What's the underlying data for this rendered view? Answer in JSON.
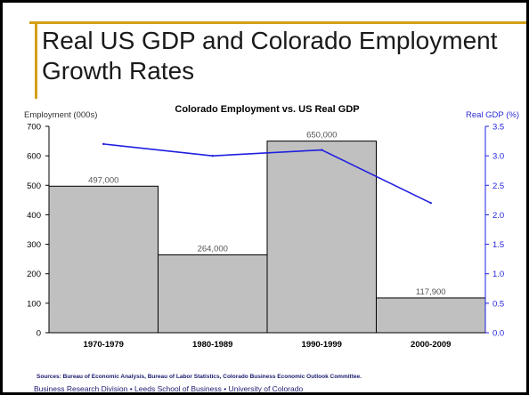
{
  "slide": {
    "title": "Real US GDP and Colorado Employment Growth Rates",
    "sources": "Sources: Bureau of Economic Analysis, Bureau of Labor Statistics, Colorado Business Economic Outlook Committee.",
    "org": "Business Research Division • Leeds School of Business • University of Colorado",
    "accent_color": "#d4a017"
  },
  "chart_data": {
    "type": "bar",
    "title": "Colorado Employment vs. US Real GDP",
    "categories": [
      "1970-1979",
      "1980-1989",
      "1990-1999",
      "2000-2009"
    ],
    "bar_labels": [
      "497,000",
      "264,000",
      "650,000",
      "117,900"
    ],
    "series": [
      {
        "name": "Employment",
        "type": "bar",
        "axis": "left",
        "values": [
          497,
          264,
          650,
          117.9
        ],
        "color": "#c0c0c0"
      },
      {
        "name": "Real GDP",
        "type": "line",
        "axis": "right",
        "values": [
          3.2,
          3.0,
          3.1,
          2.2
        ],
        "color": "#1f1fe0"
      }
    ],
    "ylabel_left": "Employment  (000s)",
    "ylabel_right": "Real GDP (%)",
    "ylim_left": [
      0,
      700
    ],
    "ylim_right": [
      0,
      3.5
    ],
    "yticks_left": [
      "0",
      "100",
      "200",
      "300",
      "400",
      "500",
      "600",
      "700"
    ],
    "yticks_right": [
      "0.0",
      "0.5",
      "1.0",
      "1.5",
      "2.0",
      "2.5",
      "3.0",
      "3.5"
    ],
    "grid": false
  }
}
